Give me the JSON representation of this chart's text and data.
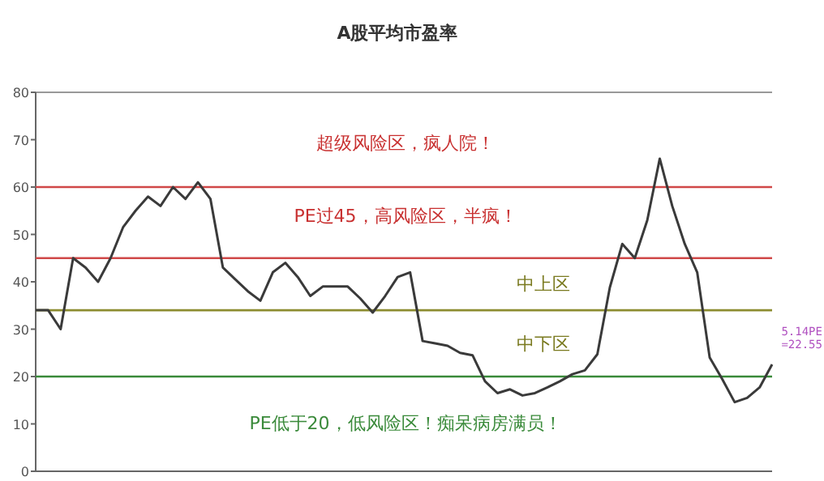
{
  "chart_data": {
    "type": "line",
    "title": "A股平均市盈率",
    "tick_labels": "y",
    "marker": "none",
    "line_style": "solid",
    "categories": [
      null,
      null,
      null,
      null,
      null,
      null,
      null,
      null,
      null,
      null,
      null,
      null,
      null,
      null,
      null,
      null,
      null,
      null,
      null,
      null,
      null,
      null,
      null,
      null,
      null,
      null,
      null,
      null,
      null,
      null,
      null,
      null,
      null,
      null,
      null,
      null,
      null,
      null,
      null,
      null,
      null,
      null,
      null,
      null,
      null,
      null,
      null,
      null,
      null,
      null,
      null,
      null,
      null,
      null,
      null,
      null,
      null,
      null,
      null,
      null
    ],
    "ylim": [
      0,
      80
    ],
    "yticks": [
      0,
      10,
      20,
      30,
      40,
      50,
      60,
      70,
      80
    ],
    "series": [
      {
        "color": "#3a3a3a",
        "values": [
          34,
          34,
          30,
          45,
          43,
          40,
          45,
          51.5,
          55,
          58,
          56,
          60,
          57.5,
          61,
          57.5,
          43,
          40.5,
          38,
          36,
          42,
          44,
          41,
          37,
          39,
          39,
          39,
          36.5,
          33.5,
          37,
          41,
          42,
          27.5,
          27,
          26.5,
          25,
          24.5,
          19,
          16.5,
          17.3,
          16,
          16.5,
          17.7,
          19,
          20.5,
          21.3,
          24.7,
          38.8,
          48,
          45,
          53,
          66,
          56,
          48,
          42,
          24,
          19.5,
          14.6,
          15.5,
          17.7,
          22.55
        ]
      }
    ],
    "ref_lines": [
      {
        "axis": "y",
        "value": 60,
        "color": "#d04848"
      },
      {
        "axis": "y",
        "value": 45,
        "color": "#d04848"
      },
      {
        "axis": "y",
        "value": 34,
        "color": "#8c8c30"
      },
      {
        "axis": "y",
        "value": 20,
        "color": "#3a8a3a"
      }
    ],
    "annotations": [
      "超级风险区，疯人院！",
      "PE过45，高风险区，半疯！",
      "中上区",
      "中下区",
      "PE低于20，低风险区！痴呆病房满员！",
      "5.14PE\n=22.55"
    ]
  }
}
